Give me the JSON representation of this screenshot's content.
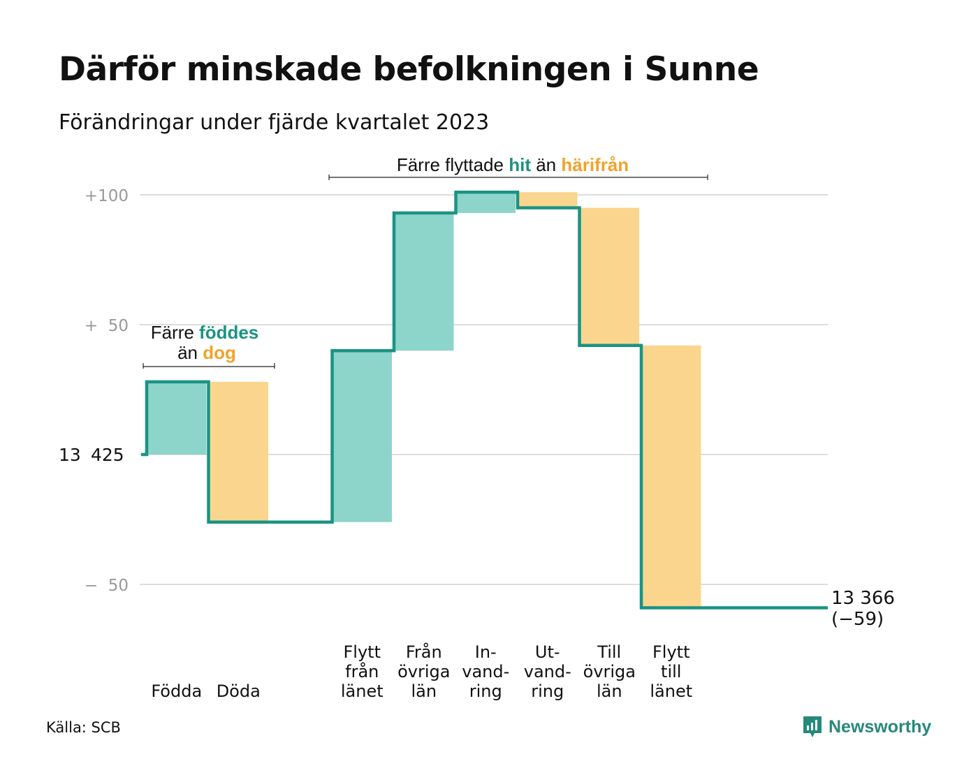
{
  "header": {
    "title": "Därför minskade befolkningen i Sunne",
    "subtitle": "Förändringar under fjärde kvartalet 2023"
  },
  "footer": {
    "source": "Källa: SCB",
    "brand": "Newsworthy",
    "brand_icon": "newsworthy-logo-icon"
  },
  "colors": {
    "increase_fill": "#8dd4ca",
    "decrease_fill": "#fad58e",
    "step_line": "#1a9383",
    "accent_teal": "#1a9383",
    "accent_orange": "#f2a22a",
    "grid": "#dddddd",
    "tick_text": "#999999"
  },
  "chart_data": {
    "type": "waterfall",
    "start_value": 13425,
    "end_value": 13366,
    "net_change": -59,
    "end_label": "13 366",
    "end_change_label": "(−59)",
    "baseline_label": [
      "13",
      "425"
    ],
    "yticks": [
      {
        "value": 100,
        "label": "+100"
      },
      {
        "value": 50,
        "label": "+  50"
      },
      {
        "value": -50,
        "label": "−  50"
      }
    ],
    "grid_values": [
      100,
      50,
      0,
      -50
    ],
    "ylim": [
      -55,
      100
    ],
    "steps": [
      {
        "label": [
          "Födda"
        ],
        "change": 28,
        "kind": "increase"
      },
      {
        "label": [
          "Döda"
        ],
        "change": -54,
        "kind": "decrease"
      },
      {
        "label": [],
        "change": 0,
        "kind": "none"
      },
      {
        "label": [
          "Flytt",
          "från",
          "länet"
        ],
        "change": 66,
        "kind": "increase"
      },
      {
        "label": [
          "Från",
          "övriga",
          "län"
        ],
        "change": 53,
        "kind": "increase"
      },
      {
        "label": [
          "In-",
          "vand-",
          "ring"
        ],
        "change": 8,
        "kind": "increase"
      },
      {
        "label": [
          "Ut-",
          "vand-",
          "ring"
        ],
        "change": -6,
        "kind": "decrease"
      },
      {
        "label": [
          "Till",
          "övriga",
          "län"
        ],
        "change": -53,
        "kind": "decrease"
      },
      {
        "label": [
          "Flytt",
          "till",
          "länet"
        ],
        "change": -101,
        "kind": "decrease"
      },
      {
        "label": [],
        "change": 0,
        "kind": "none"
      }
    ],
    "annotations": [
      {
        "id": "births-deaths",
        "line1": [
          {
            "text": "Färre ",
            "color": "plain"
          },
          {
            "text": "föddes",
            "color": "teal"
          }
        ],
        "line2": [
          {
            "text": "än ",
            "color": "plain"
          },
          {
            "text": "dog",
            "color": "orange"
          }
        ]
      },
      {
        "id": "migration",
        "line1": [
          {
            "text": "Färre flyttade ",
            "color": "plain"
          },
          {
            "text": "hit",
            "color": "teal"
          },
          {
            "text": " än ",
            "color": "plain"
          },
          {
            "text": "härifrån",
            "color": "orange"
          }
        ]
      }
    ]
  }
}
